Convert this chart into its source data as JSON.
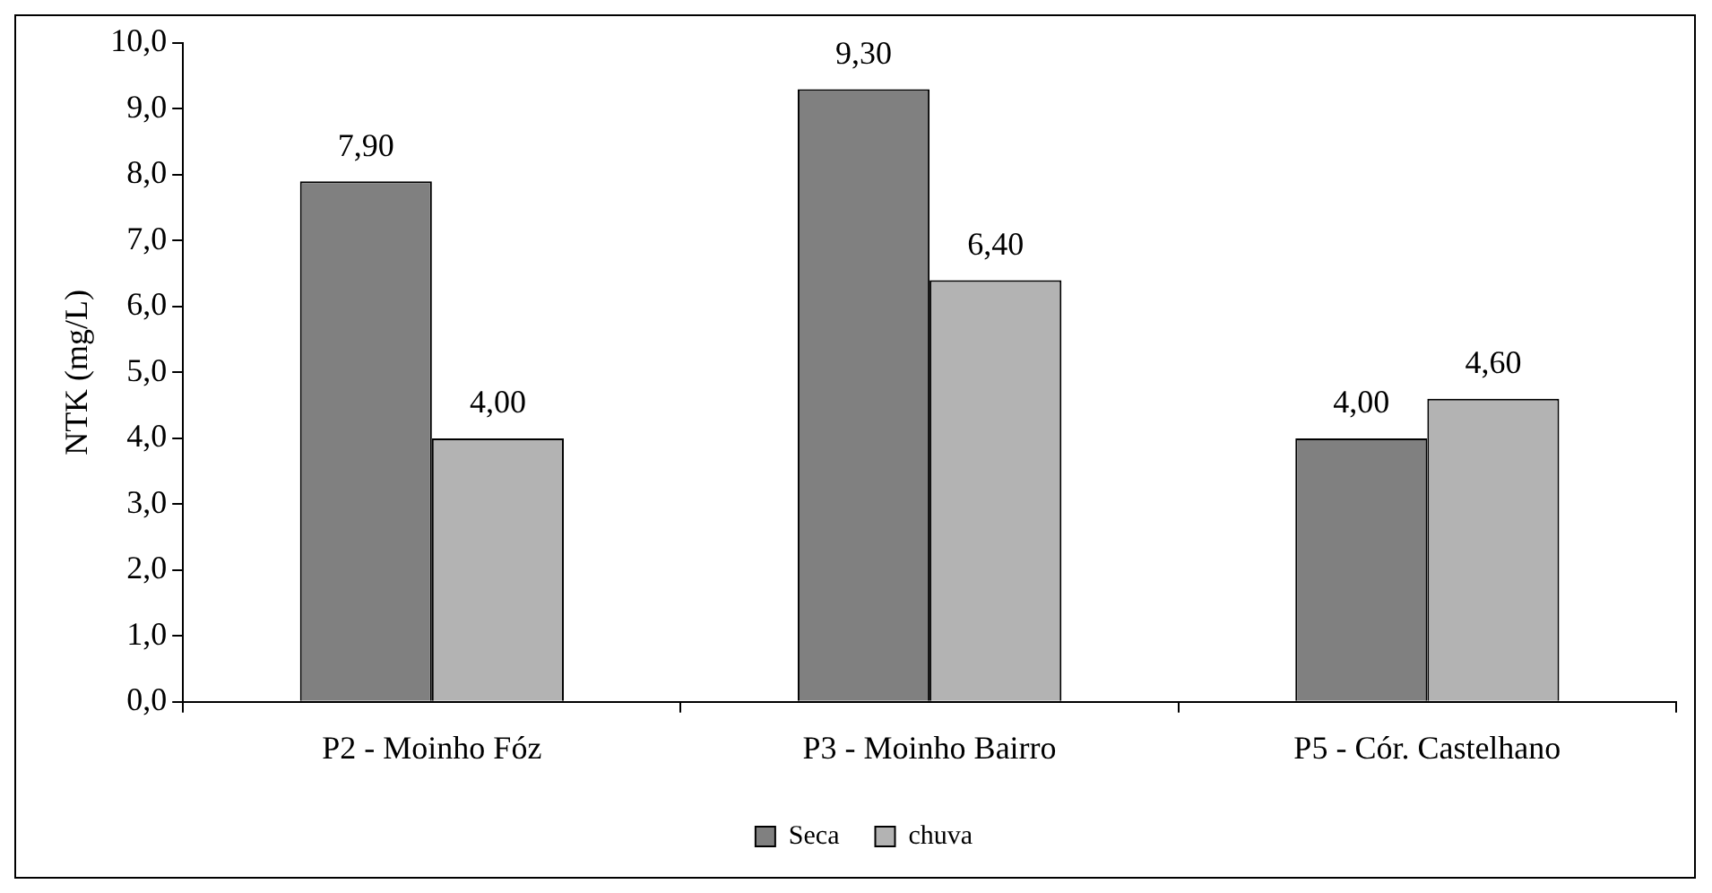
{
  "chart_data": {
    "type": "bar",
    "ylabel": "NTK (mg/L)",
    "categories": [
      "P2 - Moinho Fóz",
      "P3 - Moinho Bairro",
      "P5 - Cór. Castelhano"
    ],
    "series": [
      {
        "name": "Seca",
        "color": "#808080",
        "values": [
          7.9,
          9.3,
          4.0
        ],
        "value_labels": [
          "7,90",
          "9,30",
          "4,00"
        ]
      },
      {
        "name": "chuva",
        "color": "#b3b3b3",
        "values": [
          4.0,
          6.4,
          4.6
        ],
        "value_labels": [
          "4,00",
          "6,40",
          "4,60"
        ]
      }
    ],
    "ylim": [
      0,
      10
    ],
    "yticks": [
      {
        "value": 0,
        "label": "0,0"
      },
      {
        "value": 1,
        "label": "1,0"
      },
      {
        "value": 2,
        "label": "2,0"
      },
      {
        "value": 3,
        "label": "3,0"
      },
      {
        "value": 4,
        "label": "4,0"
      },
      {
        "value": 5,
        "label": "5,0"
      },
      {
        "value": 6,
        "label": "6,0"
      },
      {
        "value": 7,
        "label": "7,0"
      },
      {
        "value": 8,
        "label": "8,0"
      },
      {
        "value": 9,
        "label": "9,0"
      },
      {
        "value": 10,
        "label": "10,0"
      }
    ],
    "grid": false,
    "legend": "bottom"
  }
}
